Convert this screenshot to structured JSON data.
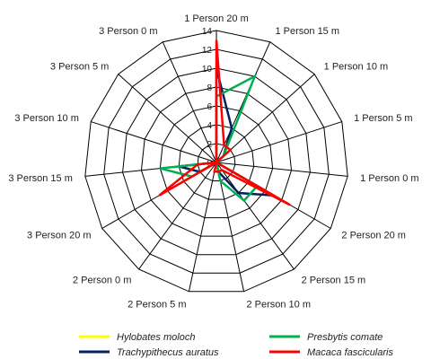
{
  "chart_data": {
    "type": "radar",
    "categories": [
      "1 Person 20 m",
      "1 Person 15 m",
      "1 Person 10 m",
      "1 Person 5 m",
      "1 Person 0 m",
      "2 Person 20 m",
      "2 Person 15 m",
      "2 Person 10 m",
      "2 Person 5 m",
      "2 Person 0 m",
      "3 Person 20 m",
      "3 Person 15 m",
      "3 Person 10 m",
      "3 Person 5 m",
      "3 Person 0 m"
    ],
    "rticks": [
      "0",
      "2",
      "4",
      "6",
      "8",
      "10",
      "12",
      "14"
    ],
    "rlim": [
      0,
      14
    ],
    "series": [
      {
        "name": "Hylobates moloch",
        "color": "#ffff00",
        "values": [
          0,
          0,
          0,
          0,
          0,
          0,
          0,
          0,
          0,
          0,
          0,
          0,
          0,
          0,
          0
        ]
      },
      {
        "name": "Trachypithecus auratus",
        "color": "#002060",
        "values": [
          10,
          4,
          1,
          0,
          0,
          7,
          4,
          1,
          0,
          0,
          2,
          4,
          0,
          0,
          0
        ]
      },
      {
        "name": "Presbytis comate",
        "color": "#00b050",
        "values": [
          7,
          10,
          1,
          0,
          0,
          5,
          5,
          2,
          0,
          0,
          3,
          6,
          0,
          0,
          0
        ]
      },
      {
        "name": "Macaca fascicularis",
        "color": "#ff0000",
        "values": [
          13,
          2,
          2,
          0,
          0,
          9,
          1,
          1,
          1,
          0,
          7,
          2,
          0,
          0,
          0
        ]
      }
    ],
    "legend_position": "bottom",
    "grid": true
  }
}
